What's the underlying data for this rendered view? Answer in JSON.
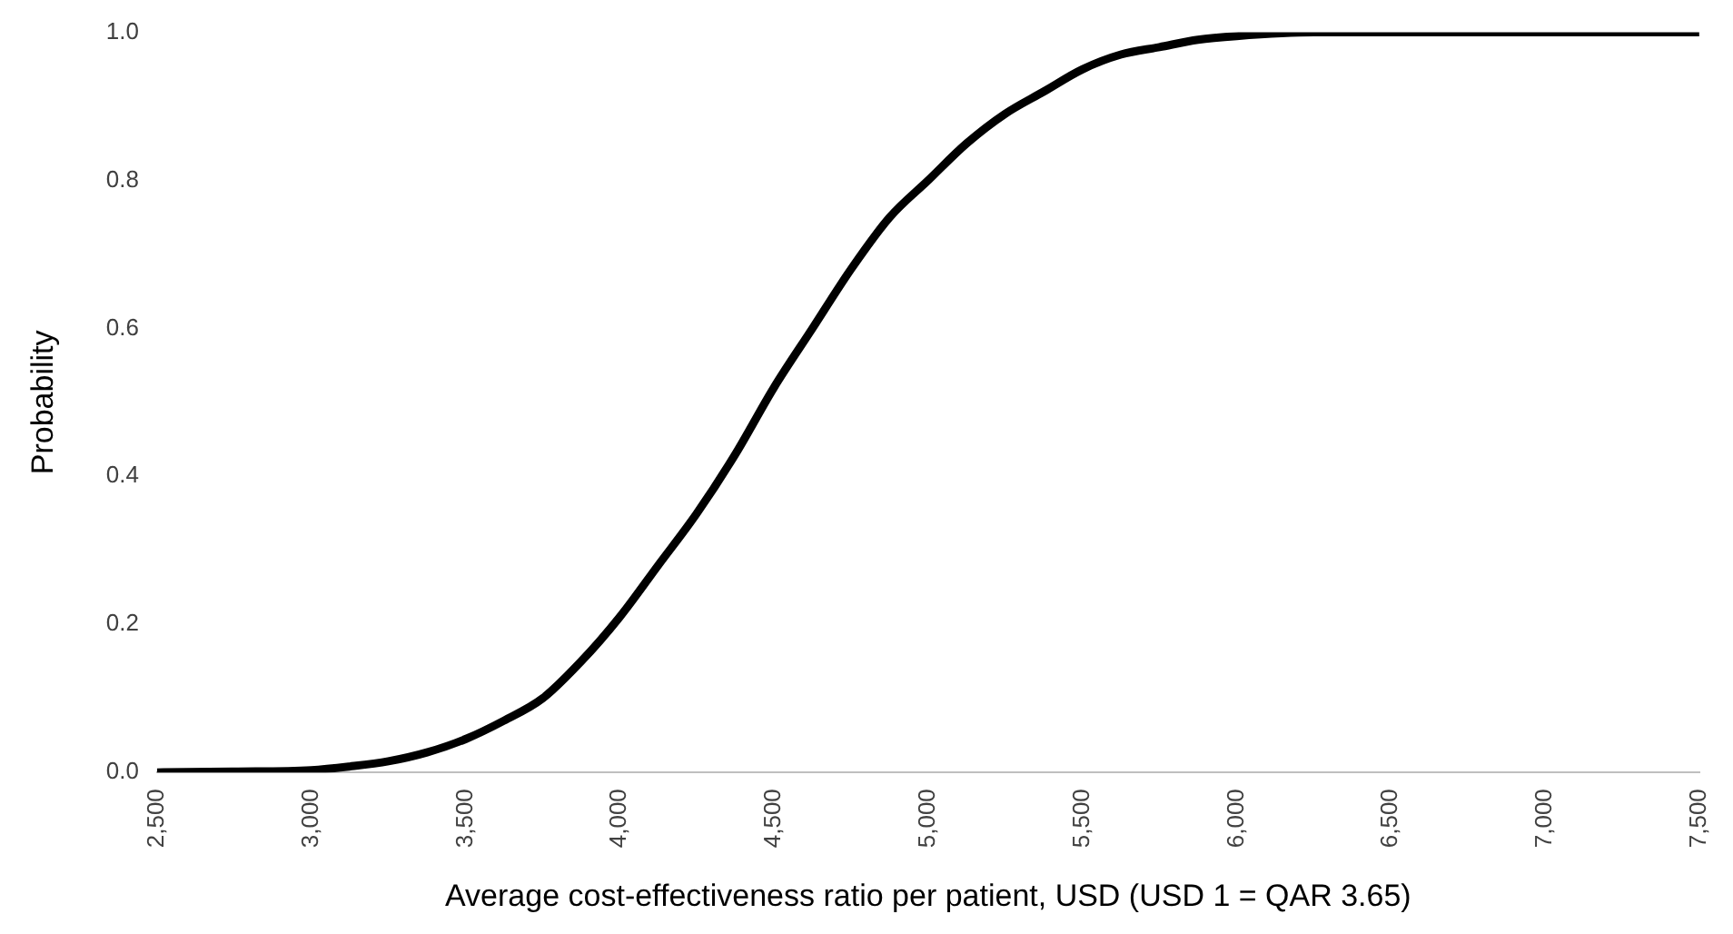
{
  "chart_data": {
    "type": "line",
    "xlabel": "Average cost-effectiveness ratio per patient, USD (USD 1 = QAR 3.65)",
    "ylabel": "Probability",
    "x": [
      2500,
      2750,
      3000,
      3125,
      3250,
      3375,
      3500,
      3625,
      3750,
      3875,
      4000,
      4125,
      4250,
      4375,
      4500,
      4625,
      4750,
      4875,
      5000,
      5125,
      5250,
      5375,
      5500,
      5625,
      5750,
      5875,
      6000,
      6250,
      6500,
      7000,
      7500
    ],
    "series": [
      {
        "color": "#000000",
        "values": [
          0,
          0.001,
          0.003,
          0.008,
          0.015,
          0.027,
          0.045,
          0.07,
          0.1,
          0.15,
          0.21,
          0.28,
          0.35,
          0.43,
          0.52,
          0.6,
          0.68,
          0.75,
          0.8,
          0.85,
          0.89,
          0.92,
          0.95,
          0.97,
          0.98,
          0.99,
          0.995,
          1,
          1,
          1,
          1
        ]
      }
    ],
    "xlim": [
      2500,
      7500
    ],
    "xticks": [
      {
        "value": 2500,
        "label": "2,500"
      },
      {
        "value": 3000,
        "label": "3,000"
      },
      {
        "value": 3500,
        "label": "3,500"
      },
      {
        "value": 4000,
        "label": "4,000"
      },
      {
        "value": 4500,
        "label": "4,500"
      },
      {
        "value": 5000,
        "label": "5,000"
      },
      {
        "value": 5500,
        "label": "5,500"
      },
      {
        "value": 6000,
        "label": "6,000"
      },
      {
        "value": 6500,
        "label": "6,500"
      },
      {
        "value": 7000,
        "label": "7,000"
      },
      {
        "value": 7500,
        "label": "7,500"
      }
    ],
    "ylim": [
      0,
      1
    ],
    "yticks": [
      {
        "value": 0,
        "label": "0.0"
      },
      {
        "value": 0.2,
        "label": "0.2"
      },
      {
        "value": 0.4,
        "label": "0.4"
      },
      {
        "value": 0.6,
        "label": "0.6"
      },
      {
        "value": 0.8,
        "label": "0.8"
      },
      {
        "value": 1,
        "label": "1.0"
      }
    ],
    "grid": false,
    "legend": false,
    "marker": "none",
    "line_style": "solid"
  }
}
